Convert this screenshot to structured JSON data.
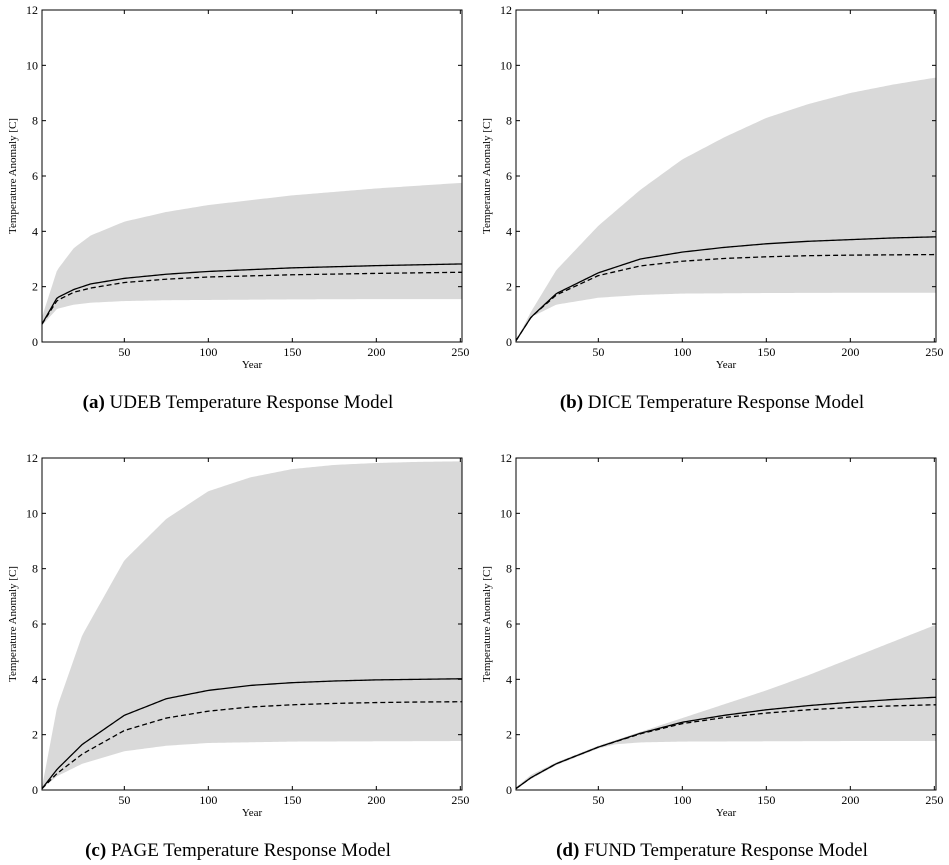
{
  "chart_data": [
    {
      "type": "area",
      "panel_tag": "(a)",
      "caption": "UDEB Temperature Response Model",
      "xlabel": "Year",
      "ylabel": "Temperature Anomaly [C]",
      "xlim": [
        1,
        251
      ],
      "ylim": [
        0,
        12
      ],
      "xticks": [
        50,
        100,
        150,
        200,
        250
      ],
      "yticks": [
        0,
        2,
        4,
        6,
        8,
        10,
        12
      ],
      "grid": false,
      "colors": {
        "band": "#d9d9d9",
        "line": "#000000"
      },
      "series": [
        {
          "style": "band-upper",
          "x": [
            1,
            10,
            20,
            30,
            50,
            75,
            100,
            150,
            200,
            250
          ],
          "y": [
            0.9,
            2.6,
            3.4,
            3.85,
            4.35,
            4.7,
            4.95,
            5.3,
            5.55,
            5.75
          ]
        },
        {
          "style": "band-lower",
          "x": [
            1,
            10,
            20,
            30,
            50,
            75,
            100,
            150,
            200,
            250
          ],
          "y": [
            0.6,
            1.2,
            1.35,
            1.42,
            1.48,
            1.51,
            1.52,
            1.54,
            1.55,
            1.55
          ]
        },
        {
          "style": "solid",
          "x": [
            1,
            10,
            20,
            30,
            50,
            75,
            100,
            150,
            200,
            250
          ],
          "y": [
            0.65,
            1.6,
            1.9,
            2.1,
            2.3,
            2.45,
            2.55,
            2.68,
            2.76,
            2.82
          ]
        },
        {
          "style": "dashed",
          "x": [
            1,
            10,
            20,
            30,
            50,
            75,
            100,
            150,
            200,
            250
          ],
          "y": [
            0.65,
            1.5,
            1.8,
            1.95,
            2.15,
            2.27,
            2.35,
            2.43,
            2.48,
            2.52
          ]
        }
      ]
    },
    {
      "type": "area",
      "panel_tag": "(b)",
      "caption": "DICE Temperature Response Model",
      "xlabel": "Year",
      "ylabel": "Temperature Anomaly [C]",
      "xlim": [
        1,
        251
      ],
      "ylim": [
        0,
        12
      ],
      "xticks": [
        50,
        100,
        150,
        200,
        250
      ],
      "yticks": [
        0,
        2,
        4,
        6,
        8,
        10,
        12
      ],
      "grid": false,
      "colors": {
        "band": "#d9d9d9",
        "line": "#000000"
      },
      "series": [
        {
          "style": "band-upper",
          "x": [
            1,
            10,
            25,
            50,
            75,
            100,
            125,
            150,
            175,
            200,
            225,
            250
          ],
          "y": [
            0.05,
            1.1,
            2.6,
            4.2,
            5.5,
            6.6,
            7.4,
            8.1,
            8.6,
            9.0,
            9.3,
            9.55
          ]
        },
        {
          "style": "band-lower",
          "x": [
            1,
            10,
            25,
            50,
            75,
            100,
            150,
            200,
            250
          ],
          "y": [
            0.05,
            0.9,
            1.35,
            1.6,
            1.7,
            1.75,
            1.77,
            1.78,
            1.78
          ]
        },
        {
          "style": "solid",
          "x": [
            1,
            10,
            25,
            50,
            75,
            100,
            125,
            150,
            175,
            200,
            225,
            250
          ],
          "y": [
            0.05,
            0.9,
            1.75,
            2.5,
            3.0,
            3.25,
            3.42,
            3.55,
            3.64,
            3.7,
            3.76,
            3.8
          ]
        },
        {
          "style": "dashed",
          "x": [
            1,
            10,
            25,
            50,
            75,
            100,
            125,
            150,
            175,
            200,
            225,
            250
          ],
          "y": [
            0.05,
            0.9,
            1.7,
            2.4,
            2.75,
            2.92,
            3.02,
            3.08,
            3.12,
            3.14,
            3.15,
            3.16
          ]
        }
      ]
    },
    {
      "type": "area",
      "panel_tag": "(c)",
      "caption": "PAGE Temperature Response Model",
      "xlabel": "Year",
      "ylabel": "Temperature Anomaly [C]",
      "xlim": [
        1,
        251
      ],
      "ylim": [
        0,
        12
      ],
      "xticks": [
        50,
        100,
        150,
        200,
        250
      ],
      "yticks": [
        0,
        2,
        4,
        6,
        8,
        10,
        12
      ],
      "grid": false,
      "colors": {
        "band": "#d9d9d9",
        "line": "#000000"
      },
      "series": [
        {
          "style": "band-upper",
          "x": [
            1,
            10,
            25,
            50,
            75,
            100,
            125,
            150,
            175,
            200,
            225,
            250
          ],
          "y": [
            0.1,
            3.0,
            5.6,
            8.3,
            9.8,
            10.8,
            11.3,
            11.6,
            11.75,
            11.82,
            11.86,
            11.88
          ]
        },
        {
          "style": "band-lower",
          "x": [
            1,
            10,
            25,
            50,
            75,
            100,
            150,
            200,
            250
          ],
          "y": [
            0.05,
            0.5,
            0.95,
            1.4,
            1.6,
            1.7,
            1.75,
            1.76,
            1.77
          ]
        },
        {
          "style": "solid",
          "x": [
            1,
            10,
            25,
            50,
            75,
            100,
            125,
            150,
            175,
            200,
            225,
            250
          ],
          "y": [
            0.05,
            0.75,
            1.65,
            2.7,
            3.3,
            3.6,
            3.78,
            3.88,
            3.94,
            3.98,
            4.0,
            4.02
          ]
        },
        {
          "style": "dashed",
          "x": [
            1,
            10,
            25,
            50,
            75,
            100,
            125,
            150,
            175,
            200,
            225,
            250
          ],
          "y": [
            0.05,
            0.6,
            1.3,
            2.15,
            2.6,
            2.85,
            3.0,
            3.08,
            3.13,
            3.16,
            3.18,
            3.19
          ]
        }
      ]
    },
    {
      "type": "area",
      "panel_tag": "(d)",
      "caption": "FUND Temperature Response Model",
      "xlabel": "Year",
      "ylabel": "Temperature Anomaly [C]",
      "xlim": [
        1,
        251
      ],
      "ylim": [
        0,
        12
      ],
      "xticks": [
        50,
        100,
        150,
        200,
        250
      ],
      "yticks": [
        0,
        2,
        4,
        6,
        8,
        10,
        12
      ],
      "grid": false,
      "colors": {
        "band": "#d9d9d9",
        "line": "#000000"
      },
      "series": [
        {
          "style": "band-upper",
          "x": [
            1,
            10,
            25,
            50,
            75,
            100,
            125,
            150,
            175,
            200,
            225,
            250
          ],
          "y": [
            0.1,
            0.55,
            1.0,
            1.6,
            2.1,
            2.6,
            3.1,
            3.6,
            4.15,
            4.75,
            5.35,
            5.95
          ]
        },
        {
          "style": "band-lower",
          "x": [
            1,
            10,
            25,
            50,
            60,
            75,
            100,
            150,
            200,
            250
          ],
          "y": [
            0.05,
            0.4,
            0.9,
            1.5,
            1.65,
            1.72,
            1.75,
            1.76,
            1.77,
            1.77
          ]
        },
        {
          "style": "solid",
          "x": [
            1,
            10,
            25,
            50,
            75,
            100,
            125,
            150,
            175,
            200,
            225,
            250
          ],
          "y": [
            0.05,
            0.45,
            0.95,
            1.55,
            2.05,
            2.45,
            2.7,
            2.9,
            3.05,
            3.17,
            3.27,
            3.35
          ]
        },
        {
          "style": "dashed",
          "x": [
            1,
            10,
            25,
            50,
            75,
            100,
            125,
            150,
            175,
            200,
            225,
            250
          ],
          "y": [
            0.05,
            0.45,
            0.95,
            1.55,
            2.03,
            2.4,
            2.62,
            2.78,
            2.9,
            2.98,
            3.04,
            3.08
          ]
        }
      ]
    }
  ]
}
